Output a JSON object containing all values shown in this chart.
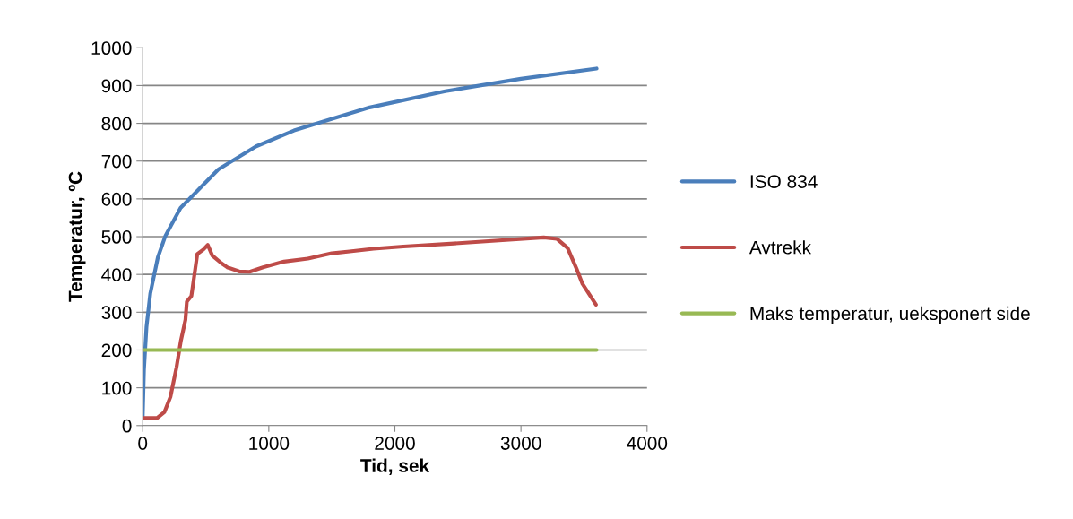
{
  "chart_data": {
    "type": "line",
    "xlabel": "Tid, sek",
    "ylabel": "Temperatur, ºC",
    "xlim": [
      0,
      4000
    ],
    "xticks": [
      0,
      1000,
      2000,
      3000,
      4000
    ],
    "ylim": [
      0,
      1000
    ],
    "yticks": [
      0,
      100,
      200,
      300,
      400,
      500,
      600,
      700,
      800,
      900,
      1000
    ],
    "grid": "y",
    "legend": "right",
    "marker": "none",
    "line_style": "solid",
    "series": [
      {
        "name": "ISO 834",
        "color": "#4a7ebb",
        "x": [
          0,
          10,
          30,
          60,
          120,
          180,
          300,
          600,
          900,
          1200,
          1800,
          2400,
          3000,
          3600
        ],
        "values": [
          20,
          147,
          261,
          349,
          445,
          502,
          576,
          678,
          739,
          781,
          842,
          885,
          918,
          945
        ]
      },
      {
        "name": "Avtrekk",
        "color": "#be4b48",
        "x": [
          0,
          114,
          173,
          220,
          268,
          303,
          339,
          350,
          386,
          410,
          433,
          481,
          516,
          552,
          623,
          670,
          765,
          848,
          954,
          1120,
          1310,
          1499,
          1641,
          1831,
          2068,
          2470,
          2826,
          3181,
          3287,
          3370,
          3441,
          3488,
          3595
        ],
        "values": [
          20,
          20,
          36,
          76,
          154,
          225,
          280,
          328,
          343,
          399,
          454,
          466,
          478,
          450,
          430,
          419,
          408,
          407,
          419,
          434,
          442,
          456,
          461,
          468,
          474,
          482,
          490,
          498,
          494,
          470,
          415,
          375,
          320
        ]
      },
      {
        "name": "Maks temperatur, ueksponert side",
        "color": "#98b954",
        "x": [
          0,
          3600
        ],
        "values": [
          200,
          200
        ]
      }
    ]
  }
}
